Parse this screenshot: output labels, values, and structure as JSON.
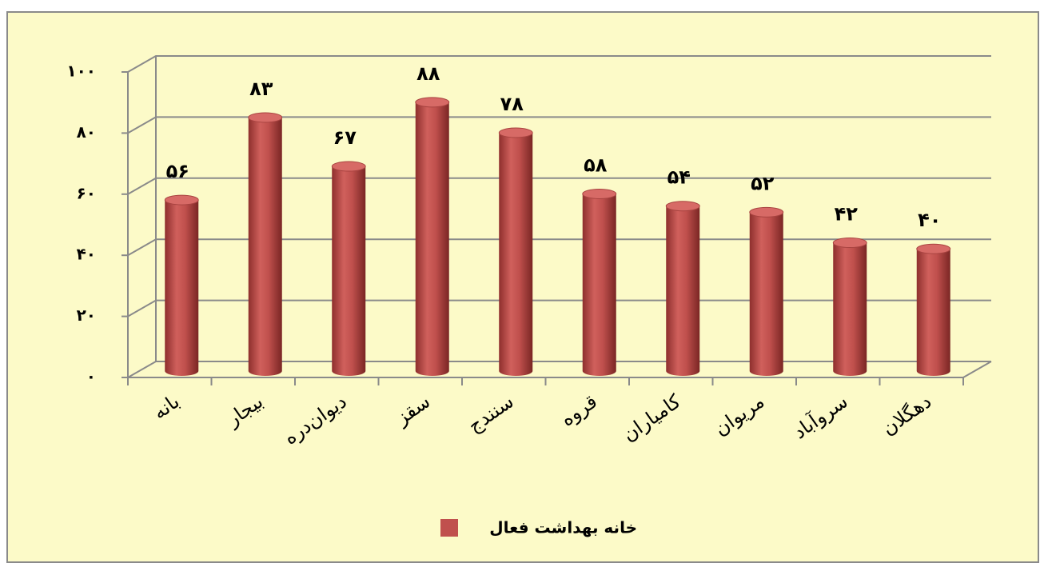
{
  "chart_data": {
    "type": "bar",
    "categories": [
      "بانه",
      "بیجار",
      "دیوان‌دره",
      "سقز",
      "سنندج",
      "قروه",
      "کامیاران",
      "مریوان",
      "سروآباد",
      "دهگلان"
    ],
    "series": [
      {
        "name": "خانه بهداشت فعال",
        "color": "#c0504d",
        "values": [
          56,
          83,
          67,
          88,
          78,
          58,
          54,
          52,
          42,
          40
        ],
        "value_labels": [
          "۵۶",
          "۸۳",
          "۶۷",
          "۸۸",
          "۷۸",
          "۵۸",
          "۵۴",
          "۵۲",
          "۴۲",
          "۴۰"
        ]
      }
    ],
    "ylim": [
      0,
      100
    ],
    "yticks": [
      {
        "value": 0,
        "label": "۰"
      },
      {
        "value": 20,
        "label": "۲۰"
      },
      {
        "value": 40,
        "label": "۴۰"
      },
      {
        "value": 60,
        "label": "۶۰"
      },
      {
        "value": 80,
        "label": "۸۰"
      },
      {
        "value": 100,
        "label": "۱۰۰"
      }
    ],
    "grid": true,
    "legend": "bottom"
  }
}
